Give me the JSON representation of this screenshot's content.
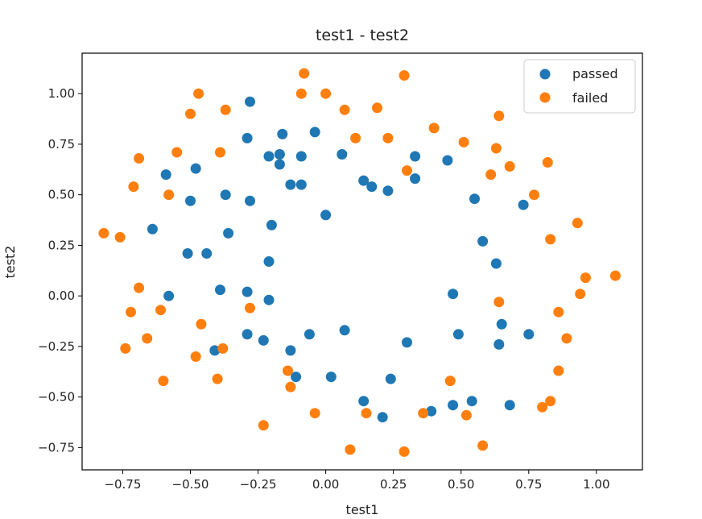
{
  "chart_data": {
    "type": "scatter",
    "title": "test1 - test2",
    "xlabel": "test1",
    "ylabel": "test2",
    "xlim": [
      -0.9,
      1.17
    ],
    "ylim": [
      -0.86,
      1.2
    ],
    "xticks": [
      -0.75,
      -0.5,
      -0.25,
      0.0,
      0.25,
      0.5,
      0.75,
      1.0
    ],
    "xtick_labels": [
      "−0.75",
      "−0.50",
      "−0.25",
      "0.00",
      "0.25",
      "0.50",
      "0.75",
      "1.00"
    ],
    "yticks": [
      -0.75,
      -0.5,
      -0.25,
      0.0,
      0.25,
      0.5,
      0.75,
      1.0
    ],
    "ytick_labels": [
      "−0.75",
      "−0.50",
      "−0.25",
      "0.00",
      "0.25",
      "0.50",
      "0.75",
      "1.00"
    ],
    "grid": false,
    "legend_position": "top-right",
    "series": [
      {
        "name": "passed",
        "color": "#1f77b4",
        "points": [
          [
            -0.28,
            0.96
          ],
          [
            -0.29,
            0.78
          ],
          [
            -0.16,
            0.8
          ],
          [
            -0.04,
            0.81
          ],
          [
            -0.17,
            0.7
          ],
          [
            -0.21,
            0.69
          ],
          [
            -0.09,
            0.69
          ],
          [
            -0.17,
            0.65
          ],
          [
            -0.13,
            0.55
          ],
          [
            -0.09,
            0.55
          ],
          [
            0.06,
            0.7
          ],
          [
            0.14,
            0.57
          ],
          [
            0.17,
            0.54
          ],
          [
            0.23,
            0.52
          ],
          [
            0.33,
            0.69
          ],
          [
            0.33,
            0.58
          ],
          [
            0.45,
            0.67
          ],
          [
            0.55,
            0.48
          ],
          [
            0.73,
            0.45
          ],
          [
            0.58,
            0.27
          ],
          [
            0.63,
            0.16
          ],
          [
            -0.48,
            0.63
          ],
          [
            -0.59,
            0.6
          ],
          [
            -0.5,
            0.47
          ],
          [
            -0.37,
            0.5
          ],
          [
            -0.28,
            0.47
          ],
          [
            0.0,
            0.4
          ],
          [
            -0.64,
            0.33
          ],
          [
            -0.36,
            0.31
          ],
          [
            -0.2,
            0.35
          ],
          [
            -0.51,
            0.21
          ],
          [
            -0.44,
            0.21
          ],
          [
            -0.21,
            0.17
          ],
          [
            -0.58,
            0.0
          ],
          [
            -0.39,
            0.03
          ],
          [
            -0.29,
            0.02
          ],
          [
            -0.21,
            -0.02
          ],
          [
            0.47,
            0.01
          ],
          [
            -0.29,
            -0.19
          ],
          [
            -0.23,
            -0.22
          ],
          [
            -0.06,
            -0.19
          ],
          [
            0.07,
            -0.17
          ],
          [
            0.3,
            -0.23
          ],
          [
            0.49,
            -0.19
          ],
          [
            0.65,
            -0.14
          ],
          [
            0.75,
            -0.19
          ],
          [
            0.64,
            -0.24
          ],
          [
            -0.41,
            -0.27
          ],
          [
            -0.13,
            -0.27
          ],
          [
            -0.11,
            -0.4
          ],
          [
            0.02,
            -0.4
          ],
          [
            0.24,
            -0.41
          ],
          [
            0.14,
            -0.52
          ],
          [
            0.21,
            -0.6
          ],
          [
            0.39,
            -0.57
          ],
          [
            0.47,
            -0.54
          ],
          [
            0.54,
            -0.52
          ],
          [
            0.68,
            -0.54
          ]
        ]
      },
      {
        "name": "failed",
        "color": "#ff7f0e",
        "points": [
          [
            -0.47,
            1.0
          ],
          [
            -0.09,
            1.0
          ],
          [
            0.0,
            1.0
          ],
          [
            -0.08,
            1.1
          ],
          [
            0.29,
            1.09
          ],
          [
            -0.5,
            0.9
          ],
          [
            -0.37,
            0.92
          ],
          [
            0.07,
            0.92
          ],
          [
            0.19,
            0.93
          ],
          [
            0.64,
            0.89
          ],
          [
            0.4,
            0.83
          ],
          [
            0.11,
            0.78
          ],
          [
            0.23,
            0.78
          ],
          [
            0.51,
            0.76
          ],
          [
            0.63,
            0.73
          ],
          [
            -0.55,
            0.71
          ],
          [
            -0.39,
            0.71
          ],
          [
            -0.69,
            0.68
          ],
          [
            0.82,
            0.66
          ],
          [
            0.68,
            0.64
          ],
          [
            0.61,
            0.6
          ],
          [
            0.3,
            0.62
          ],
          [
            -0.71,
            0.54
          ],
          [
            -0.58,
            0.5
          ],
          [
            0.77,
            0.5
          ],
          [
            0.93,
            0.36
          ],
          [
            -0.82,
            0.31
          ],
          [
            -0.76,
            0.29
          ],
          [
            0.83,
            0.28
          ],
          [
            1.07,
            0.1
          ],
          [
            0.96,
            0.09
          ],
          [
            -0.69,
            0.04
          ],
          [
            0.94,
            0.01
          ],
          [
            -0.28,
            -0.06
          ],
          [
            0.64,
            -0.03
          ],
          [
            -0.61,
            -0.07
          ],
          [
            -0.72,
            -0.08
          ],
          [
            0.86,
            -0.08
          ],
          [
            -0.46,
            -0.14
          ],
          [
            -0.66,
            -0.21
          ],
          [
            0.89,
            -0.21
          ],
          [
            -0.74,
            -0.26
          ],
          [
            -0.38,
            -0.26
          ],
          [
            -0.48,
            -0.3
          ],
          [
            -0.14,
            -0.37
          ],
          [
            0.86,
            -0.37
          ],
          [
            -0.4,
            -0.41
          ],
          [
            0.46,
            -0.42
          ],
          [
            -0.6,
            -0.42
          ],
          [
            -0.13,
            -0.45
          ],
          [
            0.83,
            -0.52
          ],
          [
            0.8,
            -0.55
          ],
          [
            -0.04,
            -0.58
          ],
          [
            0.15,
            -0.58
          ],
          [
            0.36,
            -0.58
          ],
          [
            0.52,
            -0.59
          ],
          [
            -0.23,
            -0.64
          ],
          [
            0.58,
            -0.74
          ],
          [
            0.09,
            -0.76
          ],
          [
            0.29,
            -0.77
          ]
        ]
      }
    ]
  }
}
